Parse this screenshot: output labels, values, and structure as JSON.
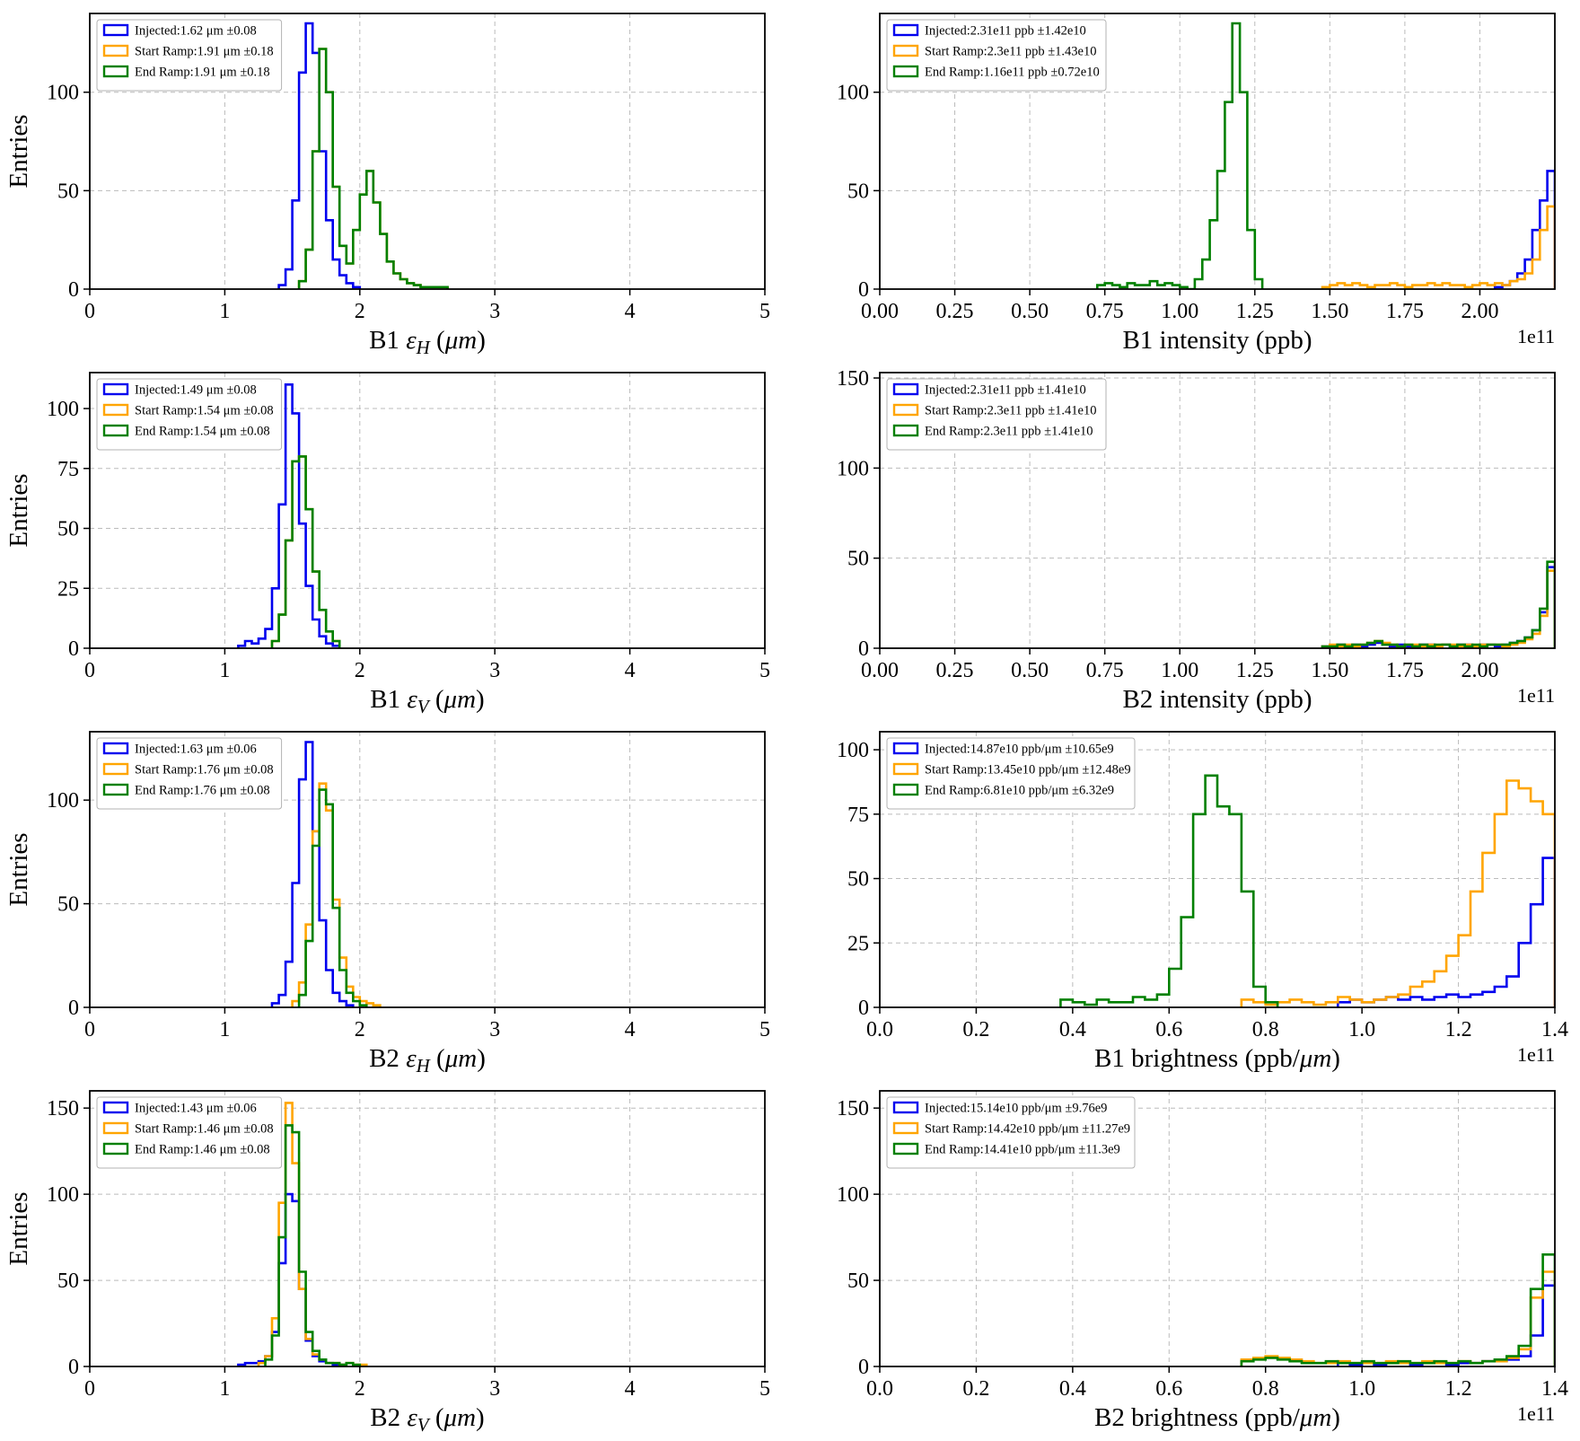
{
  "figure": {
    "background": "#ffffff",
    "entries_label": "Entries",
    "colors": {
      "injected": "#0000ee",
      "start_ramp": "#ffa500",
      "end_ramp": "#008000",
      "grid": "#bbbbbb",
      "axis": "#000000"
    }
  },
  "chart_data": [
    {
      "type": "histogram-step",
      "name": "b1-eh",
      "xlabel_parts": [
        {
          "t": "B1 "
        },
        {
          "t": "ε",
          "i": true
        },
        {
          "t": "H",
          "i": true,
          "sub": true
        },
        {
          "t": " ("
        },
        {
          "t": "μm",
          "i": true
        },
        {
          "t": ")"
        }
      ],
      "has_ylabel": true,
      "offset_text": "",
      "xlim": [
        0,
        5
      ],
      "ylim": [
        0,
        140
      ],
      "xtick_values": [
        0,
        1,
        2,
        3,
        4,
        5
      ],
      "xtick_labels": [
        "0",
        "1",
        "2",
        "3",
        "4",
        "5"
      ],
      "ytick_values": [
        0,
        50,
        100
      ],
      "ytick_labels": [
        "0",
        "50",
        "100"
      ],
      "legend": [
        "Injected:1.62 μm ±0.08",
        "Start Ramp:1.91 μm ±0.18",
        "End Ramp:1.91 μm ±0.18"
      ],
      "series": [
        {
          "name": "Injected",
          "color": "#0000ee",
          "start": 1.4,
          "bin_width": 0.05,
          "counts": [
            2,
            10,
            45,
            110,
            135,
            120,
            70,
            35,
            15,
            7,
            3,
            1
          ]
        },
        {
          "name": "Start Ramp",
          "color": "#ffa500",
          "start": 1.55,
          "bin_width": 0.05,
          "counts": [
            4,
            20,
            70,
            122,
            100,
            52,
            22,
            13,
            30,
            48,
            60,
            44,
            28,
            14,
            8,
            5,
            3,
            2,
            1,
            1,
            1,
            1
          ]
        },
        {
          "name": "End Ramp",
          "color": "#008000",
          "start": 1.55,
          "bin_width": 0.05,
          "counts": [
            4,
            20,
            70,
            122,
            100,
            52,
            22,
            13,
            30,
            48,
            60,
            44,
            28,
            14,
            8,
            5,
            3,
            2,
            1,
            1,
            1,
            1
          ]
        }
      ]
    },
    {
      "type": "histogram-step",
      "name": "b1-intensity",
      "xlabel_parts": [
        {
          "t": "B1 intensity (ppb)"
        }
      ],
      "has_ylabel": false,
      "offset_text": "1e11",
      "xlim": [
        0,
        2.25
      ],
      "ylim": [
        0,
        140
      ],
      "xtick_values": [
        0,
        0.25,
        0.5,
        0.75,
        1,
        1.25,
        1.5,
        1.75,
        2
      ],
      "xtick_labels": [
        "0.00",
        "0.25",
        "0.50",
        "0.75",
        "1.00",
        "1.25",
        "1.50",
        "1.75",
        "2.00"
      ],
      "ytick_values": [
        0,
        50,
        100
      ],
      "ytick_labels": [
        "0",
        "50",
        "100"
      ],
      "legend": [
        "Injected:2.31e11 ppb ±1.42e10",
        "Start Ramp:2.3e11 ppb ±1.43e10",
        "End Ramp:1.16e11 ppb ±0.72e10"
      ],
      "series": [
        {
          "name": "Injected",
          "color": "#0000ee",
          "start": 2.05,
          "bin_width": 0.025,
          "counts": [
            1,
            2,
            4,
            8,
            15,
            30,
            45,
            60
          ]
        },
        {
          "name": "Start Ramp",
          "color": "#ffa500",
          "start": 1.475,
          "bin_width": 0.025,
          "counts": [
            1,
            2,
            3,
            2,
            3,
            2,
            1,
            2,
            2,
            3,
            2,
            1,
            2,
            2,
            3,
            2,
            3,
            2,
            2,
            1,
            2,
            3,
            2,
            3,
            2,
            4,
            5,
            8,
            15,
            30,
            42
          ]
        },
        {
          "name": "End Ramp",
          "color": "#008000",
          "start": 0.725,
          "bin_width": 0.025,
          "counts": [
            2,
            3,
            2,
            1,
            3,
            2,
            2,
            4,
            2,
            3,
            2,
            1,
            0,
            5,
            15,
            35,
            60,
            95,
            135,
            100,
            30,
            5
          ]
        }
      ]
    },
    {
      "type": "histogram-step",
      "name": "b1-ev",
      "xlabel_parts": [
        {
          "t": "B1 "
        },
        {
          "t": "ε",
          "i": true
        },
        {
          "t": "V",
          "i": true,
          "sub": true
        },
        {
          "t": " ("
        },
        {
          "t": "μm",
          "i": true
        },
        {
          "t": ")"
        }
      ],
      "has_ylabel": true,
      "offset_text": "",
      "xlim": [
        0,
        5
      ],
      "ylim": [
        0,
        115
      ],
      "xtick_values": [
        0,
        1,
        2,
        3,
        4,
        5
      ],
      "xtick_labels": [
        "0",
        "1",
        "2",
        "3",
        "4",
        "5"
      ],
      "ytick_values": [
        0,
        25,
        50,
        75,
        100
      ],
      "ytick_labels": [
        "0",
        "25",
        "50",
        "75",
        "100"
      ],
      "legend": [
        "Injected:1.49 μm ±0.08",
        "Start Ramp:1.54 μm ±0.08",
        "End Ramp:1.54 μm ±0.08"
      ],
      "series": [
        {
          "name": "Injected",
          "color": "#0000ee",
          "start": 1.1,
          "bin_width": 0.05,
          "counts": [
            1,
            3,
            2,
            4,
            8,
            25,
            60,
            110,
            98,
            52,
            26,
            12,
            5,
            2,
            1
          ]
        },
        {
          "name": "Start Ramp",
          "color": "#ffa500",
          "start": 1.35,
          "bin_width": 0.05,
          "counts": [
            3,
            14,
            45,
            78,
            80,
            58,
            32,
            16,
            7,
            3
          ]
        },
        {
          "name": "End Ramp",
          "color": "#008000",
          "start": 1.35,
          "bin_width": 0.05,
          "counts": [
            3,
            14,
            45,
            78,
            80,
            58,
            32,
            16,
            7,
            3
          ]
        }
      ]
    },
    {
      "type": "histogram-step",
      "name": "b2-intensity",
      "xlabel_parts": [
        {
          "t": "B2 intensity (ppb)"
        }
      ],
      "has_ylabel": false,
      "offset_text": "1e11",
      "xlim": [
        0,
        2.25
      ],
      "ylim": [
        0,
        153
      ],
      "xtick_values": [
        0,
        0.25,
        0.5,
        0.75,
        1,
        1.25,
        1.5,
        1.75,
        2
      ],
      "xtick_labels": [
        "0.00",
        "0.25",
        "0.50",
        "0.75",
        "1.00",
        "1.25",
        "1.50",
        "1.75",
        "2.00"
      ],
      "ytick_values": [
        0,
        50,
        100,
        150
      ],
      "ytick_labels": [
        "0",
        "50",
        "100",
        "150"
      ],
      "legend": [
        "Injected:2.31e11 ppb ±1.41e10",
        "Start Ramp:2.3e11 ppb ±1.41e10",
        "End Ramp:2.3e11 ppb ±1.41e10"
      ],
      "series": [
        {
          "name": "Injected",
          "color": "#0000ee",
          "start": 1.475,
          "bin_width": 0.025,
          "counts": [
            1,
            1,
            2,
            1,
            2,
            1,
            2,
            3,
            2,
            1,
            2,
            1,
            1,
            2,
            2,
            1,
            2,
            1,
            2,
            2,
            1,
            2,
            2,
            1,
            2,
            3,
            4,
            6,
            10,
            20,
            45
          ]
        },
        {
          "name": "Start Ramp",
          "color": "#ffa500",
          "start": 1.475,
          "bin_width": 0.025,
          "counts": [
            1,
            2,
            1,
            2,
            1,
            2,
            3,
            4,
            3,
            2,
            1,
            2,
            2,
            1,
            2,
            1,
            2,
            2,
            1,
            2,
            1,
            2,
            2,
            2,
            1,
            2,
            3,
            5,
            8,
            18,
            43
          ]
        },
        {
          "name": "End Ramp",
          "color": "#008000",
          "start": 1.475,
          "bin_width": 0.025,
          "counts": [
            1,
            1,
            2,
            1,
            2,
            2,
            3,
            4,
            2,
            2,
            1,
            2,
            1,
            2,
            1,
            2,
            2,
            1,
            2,
            1,
            2,
            1,
            2,
            2,
            2,
            3,
            4,
            6,
            10,
            22,
            48
          ]
        }
      ]
    },
    {
      "type": "histogram-step",
      "name": "b2-eh",
      "xlabel_parts": [
        {
          "t": "B2 "
        },
        {
          "t": "ε",
          "i": true
        },
        {
          "t": "H",
          "i": true,
          "sub": true
        },
        {
          "t": " ("
        },
        {
          "t": "μm",
          "i": true
        },
        {
          "t": ")"
        }
      ],
      "has_ylabel": true,
      "offset_text": "",
      "xlim": [
        0,
        5
      ],
      "ylim": [
        0,
        133
      ],
      "xtick_values": [
        0,
        1,
        2,
        3,
        4,
        5
      ],
      "xtick_labels": [
        "0",
        "1",
        "2",
        "3",
        "4",
        "5"
      ],
      "ytick_values": [
        0,
        50,
        100
      ],
      "ytick_labels": [
        "0",
        "50",
        "100"
      ],
      "legend": [
        "Injected:1.63 μm ±0.06",
        "Start Ramp:1.76 μm ±0.08",
        "End Ramp:1.76 μm ±0.08"
      ],
      "series": [
        {
          "name": "Injected",
          "color": "#0000ee",
          "start": 1.35,
          "bin_width": 0.05,
          "counts": [
            2,
            6,
            22,
            60,
            110,
            128,
            85,
            42,
            18,
            7,
            3,
            1
          ]
        },
        {
          "name": "Start Ramp",
          "color": "#ffa500",
          "start": 1.5,
          "bin_width": 0.05,
          "counts": [
            3,
            12,
            40,
            85,
            108,
            95,
            52,
            24,
            10,
            5,
            3,
            2,
            1
          ]
        },
        {
          "name": "End Ramp",
          "color": "#008000",
          "start": 1.55,
          "bin_width": 0.05,
          "counts": [
            6,
            32,
            78,
            105,
            98,
            48,
            18,
            7,
            3,
            1
          ]
        }
      ]
    },
    {
      "type": "histogram-step",
      "name": "b1-brightness",
      "xlabel_parts": [
        {
          "t": "B1 brightness (ppb/"
        },
        {
          "t": "μm",
          "i": true
        },
        {
          "t": ")"
        }
      ],
      "has_ylabel": false,
      "offset_text": "1e11",
      "xlim": [
        0,
        1.4
      ],
      "ylim": [
        0,
        107
      ],
      "xtick_values": [
        0,
        0.2,
        0.4,
        0.6,
        0.8,
        1,
        1.2,
        1.4
      ],
      "xtick_labels": [
        "0.0",
        "0.2",
        "0.4",
        "0.6",
        "0.8",
        "1.0",
        "1.2",
        "1.4"
      ],
      "ytick_values": [
        0,
        25,
        50,
        75,
        100
      ],
      "ytick_labels": [
        "0",
        "25",
        "50",
        "75",
        "100"
      ],
      "legend": [
        "Injected:14.87e10 ppb/μm ±10.65e9",
        "Start Ramp:13.45e10 ppb/μm ±12.48e9",
        "End Ramp:6.81e10 ppb/μm ±6.32e9"
      ],
      "series": [
        {
          "name": "Injected",
          "color": "#0000ee",
          "start": 0.95,
          "bin_width": 0.025,
          "counts": [
            2,
            3,
            2,
            3,
            4,
            3,
            4,
            3,
            4,
            5,
            4,
            5,
            6,
            8,
            12,
            25,
            40,
            58
          ]
        },
        {
          "name": "Start Ramp",
          "color": "#ffa500",
          "start": 0.75,
          "bin_width": 0.025,
          "counts": [
            3,
            2,
            1,
            2,
            3,
            2,
            1,
            2,
            4,
            3,
            2,
            3,
            4,
            5,
            8,
            10,
            14,
            20,
            28,
            45,
            60,
            75,
            88,
            85,
            80,
            75
          ]
        },
        {
          "name": "End Ramp",
          "color": "#008000",
          "start": 0.375,
          "bin_width": 0.025,
          "counts": [
            3,
            2,
            1,
            3,
            2,
            2,
            4,
            3,
            5,
            15,
            35,
            75,
            90,
            78,
            75,
            45,
            8,
            2
          ]
        }
      ]
    },
    {
      "type": "histogram-step",
      "name": "b2-ev",
      "xlabel_parts": [
        {
          "t": "B2 "
        },
        {
          "t": "ε",
          "i": true
        },
        {
          "t": "V",
          "i": true,
          "sub": true
        },
        {
          "t": " ("
        },
        {
          "t": "μm",
          "i": true
        },
        {
          "t": ")"
        }
      ],
      "has_ylabel": true,
      "offset_text": "",
      "xlim": [
        0,
        5
      ],
      "ylim": [
        0,
        160
      ],
      "xtick_values": [
        0,
        1,
        2,
        3,
        4,
        5
      ],
      "xtick_labels": [
        "0",
        "1",
        "2",
        "3",
        "4",
        "5"
      ],
      "ytick_values": [
        0,
        50,
        100,
        150
      ],
      "ytick_labels": [
        "0",
        "50",
        "100",
        "150"
      ],
      "legend": [
        "Injected:1.43 μm ±0.06",
        "Start Ramp:1.46 μm ±0.08",
        "End Ramp:1.46 μm ±0.08"
      ],
      "series": [
        {
          "name": "Injected",
          "color": "#0000ee",
          "start": 1.1,
          "bin_width": 0.05,
          "counts": [
            1,
            2,
            2,
            3,
            6,
            20,
            60,
            100,
            96,
            45,
            15,
            6,
            3,
            2,
            1,
            1
          ]
        },
        {
          "name": "Start Ramp",
          "color": "#ffa500",
          "start": 1.25,
          "bin_width": 0.05,
          "counts": [
            2,
            6,
            28,
            95,
            153,
            118,
            45,
            16,
            7,
            4,
            2,
            2,
            1,
            2,
            1,
            1
          ]
        },
        {
          "name": "End Ramp",
          "color": "#008000",
          "start": 1.3,
          "bin_width": 0.05,
          "counts": [
            4,
            18,
            75,
            140,
            136,
            55,
            20,
            9,
            4,
            2,
            2,
            1,
            2,
            1
          ]
        }
      ]
    },
    {
      "type": "histogram-step",
      "name": "b2-brightness",
      "xlabel_parts": [
        {
          "t": "B2 brightness (ppb/"
        },
        {
          "t": "μm",
          "i": true
        },
        {
          "t": ")"
        }
      ],
      "has_ylabel": false,
      "offset_text": "1e11",
      "xlim": [
        0,
        1.4
      ],
      "ylim": [
        0,
        160
      ],
      "xtick_values": [
        0,
        0.2,
        0.4,
        0.6,
        0.8,
        1,
        1.2,
        1.4
      ],
      "xtick_labels": [
        "0.0",
        "0.2",
        "0.4",
        "0.6",
        "0.8",
        "1.0",
        "1.2",
        "1.4"
      ],
      "ytick_values": [
        0,
        50,
        100,
        150
      ],
      "ytick_labels": [
        "0",
        "50",
        "100",
        "150"
      ],
      "legend": [
        "Injected:15.14e10 ppb/μm ±9.76e9",
        "Start Ramp:14.42e10 ppb/μm ±11.27e9",
        "End Ramp:14.41e10 ppb/μm ±11.3e9"
      ],
      "series": [
        {
          "name": "Injected",
          "color": "#0000ee",
          "start": 0.95,
          "bin_width": 0.025,
          "counts": [
            2,
            1,
            2,
            1,
            2,
            2,
            1,
            2,
            2,
            1,
            2,
            2,
            3,
            3,
            4,
            6,
            18,
            47
          ]
        },
        {
          "name": "Start Ramp",
          "color": "#ffa500",
          "start": 0.75,
          "bin_width": 0.025,
          "counts": [
            4,
            5,
            6,
            5,
            4,
            3,
            2,
            2,
            3,
            2,
            2,
            2,
            3,
            2,
            2,
            3,
            2,
            2,
            3,
            2,
            3,
            3,
            5,
            10,
            40,
            55
          ]
        },
        {
          "name": "End Ramp",
          "color": "#008000",
          "start": 0.75,
          "bin_width": 0.025,
          "counts": [
            3,
            4,
            5,
            4,
            3,
            2,
            2,
            3,
            2,
            2,
            3,
            2,
            2,
            3,
            2,
            2,
            3,
            2,
            3,
            2,
            3,
            4,
            6,
            12,
            45,
            65
          ]
        }
      ]
    }
  ]
}
